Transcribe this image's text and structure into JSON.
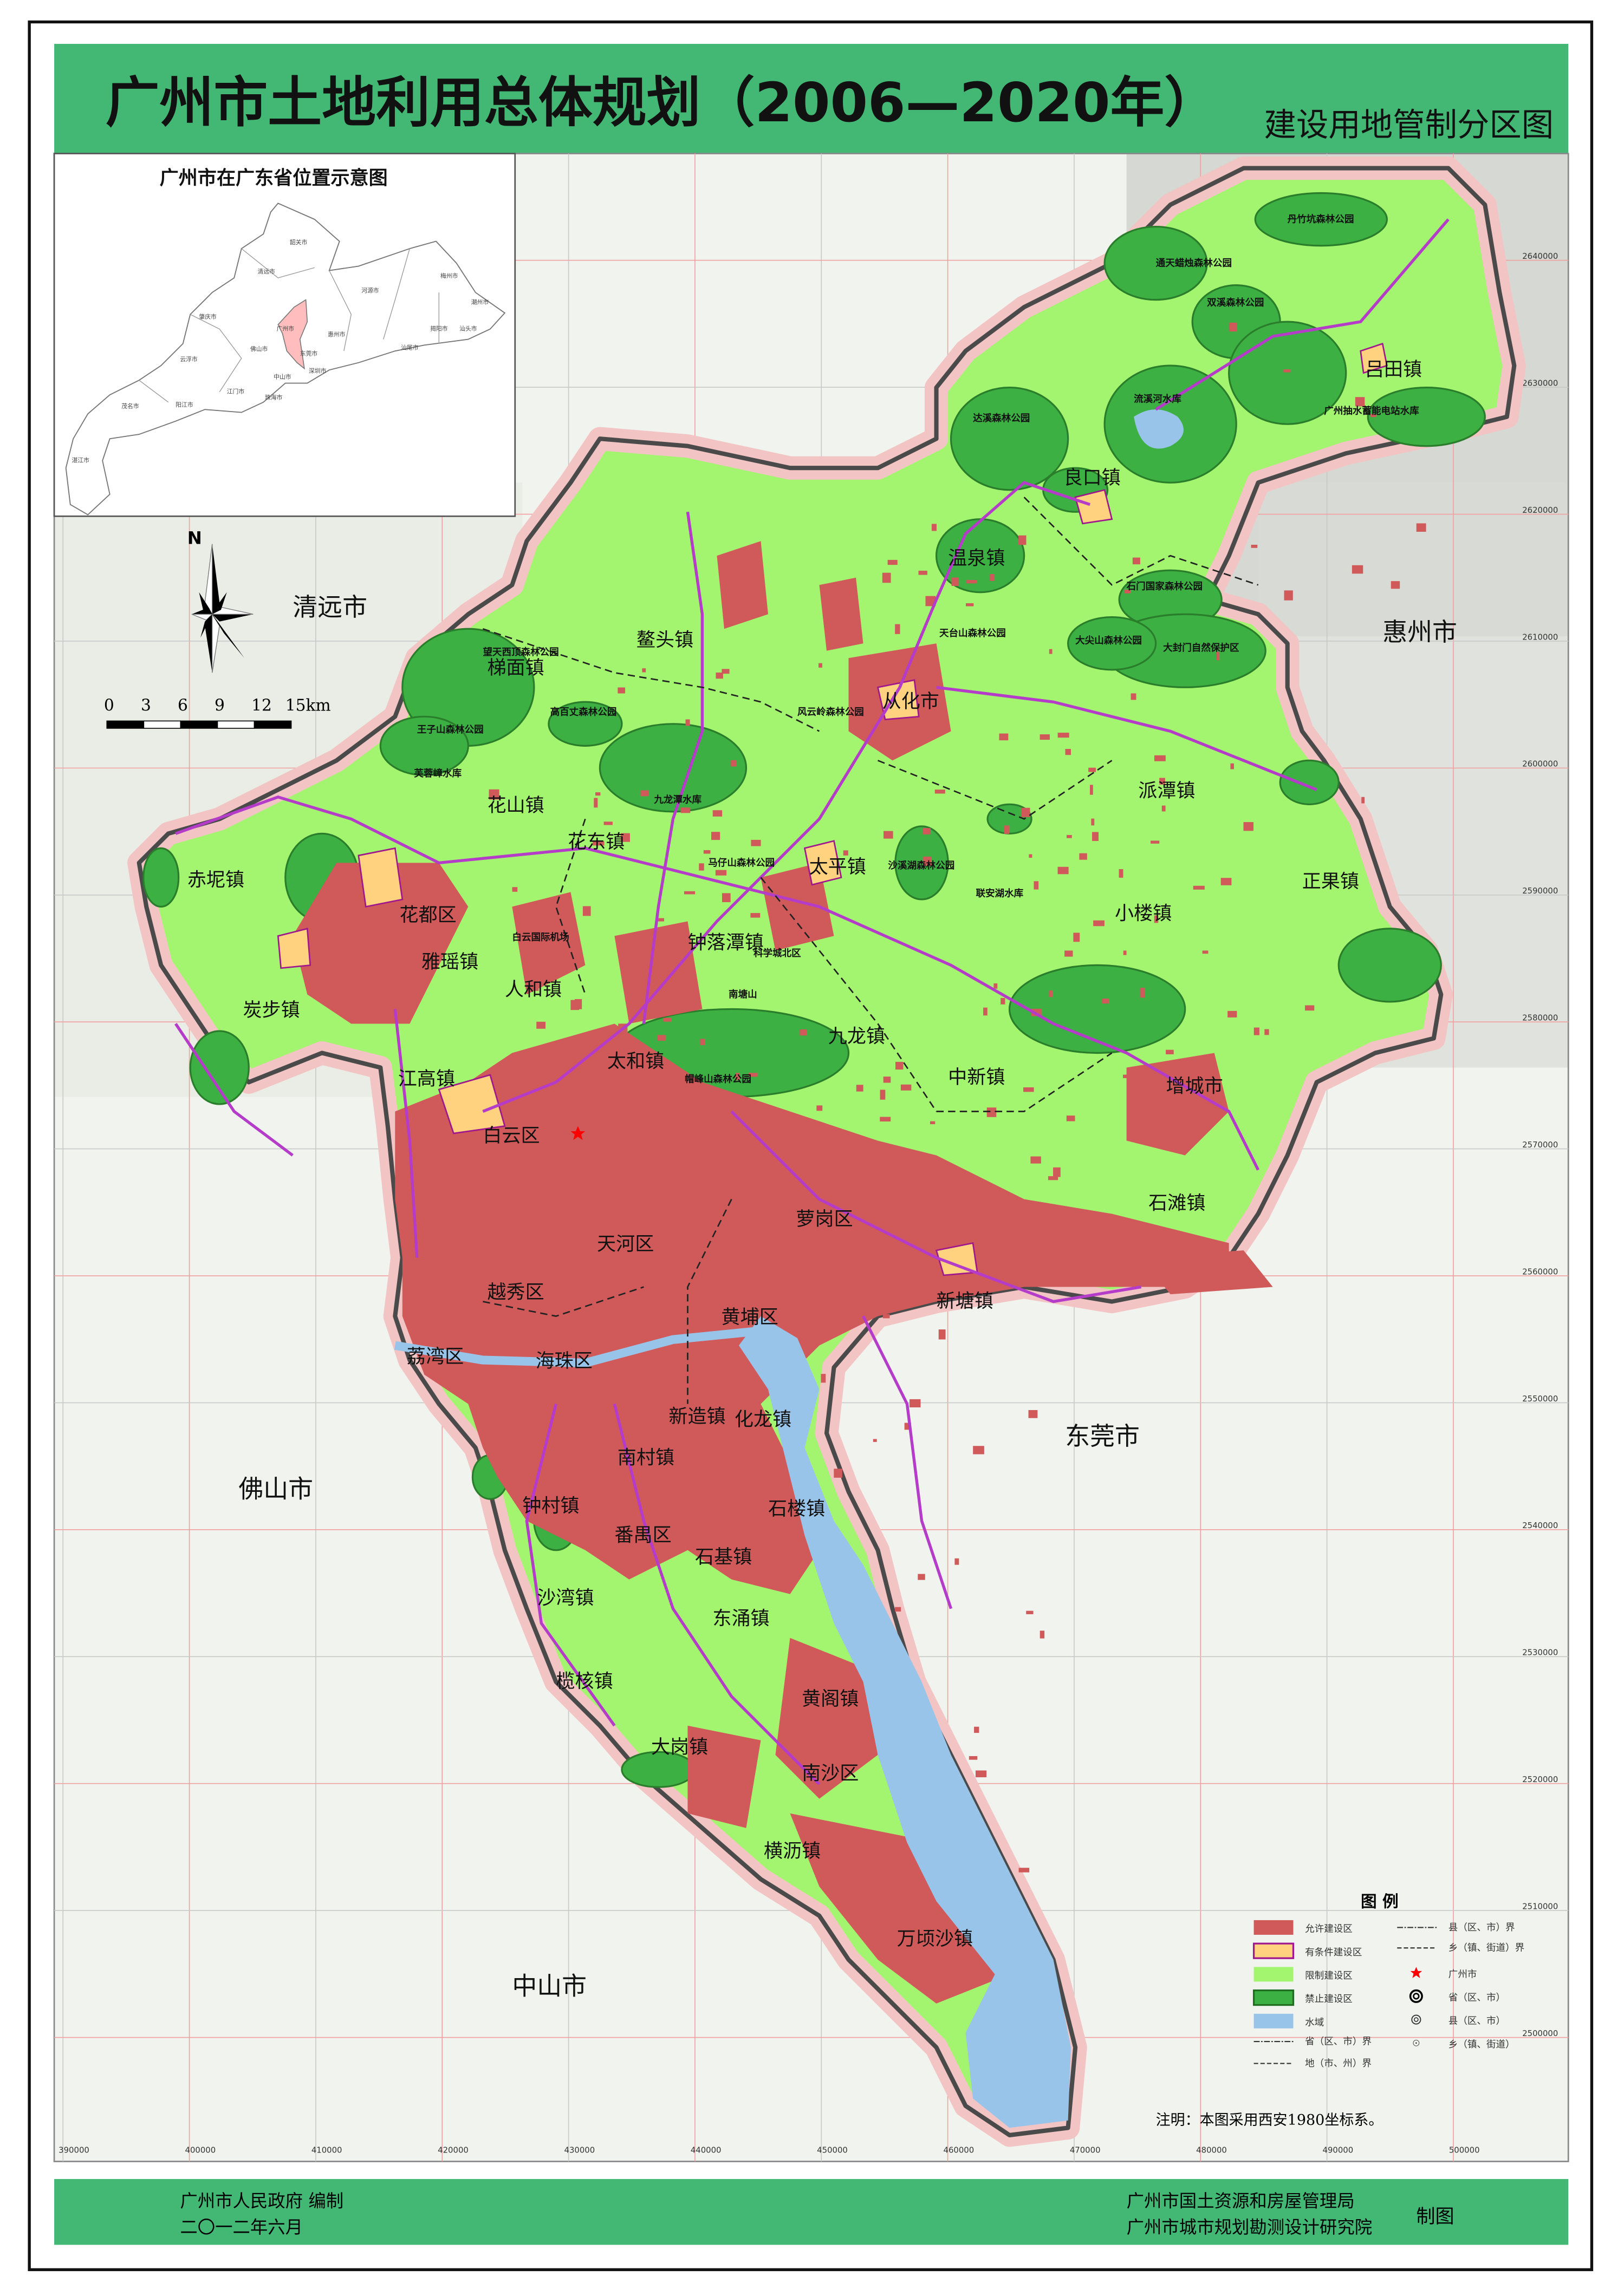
{
  "header": {
    "title": "广州市土地利用总体规划（2006—2020年）",
    "subtitle": "建设用地管制分区图",
    "bar_color": "#43b875"
  },
  "inset": {
    "title": "广州市在广东省位置示意图",
    "highlight_color": "#ffbdbd",
    "cities": [
      "韶关市",
      "清远市",
      "梅州市",
      "河源市",
      "潮州市",
      "肇庆市",
      "广州市",
      "惠州市",
      "揭阳市",
      "汕头市",
      "佛山市",
      "东莞市",
      "汕尾市",
      "云浮市",
      "深圳市",
      "中山市",
      "江门市",
      "珠海市",
      "茂名市",
      "阳江市",
      "湛江市"
    ]
  },
  "compass": {
    "north_label": "N"
  },
  "scale_bar": {
    "ticks": [
      "0",
      "3",
      "6",
      "9",
      "12",
      "15km"
    ]
  },
  "map": {
    "neighbors": [
      "清远市",
      "惠州市",
      "东莞市",
      "佛山市",
      "中山市"
    ],
    "towns": [
      "温泉镇",
      "良口镇",
      "吕田镇",
      "鳌头镇",
      "梯面镇",
      "从化市",
      "派潭镇",
      "花山镇",
      "花东镇",
      "太平镇",
      "赤坭镇",
      "花都区",
      "正果镇",
      "小楼镇",
      "钟落潭镇",
      "雅瑶镇",
      "人和镇",
      "炭步镇",
      "九龙镇",
      "太和镇",
      "中新镇",
      "江高镇",
      "增城市",
      "白云区",
      "石滩镇",
      "萝岗区",
      "天河区",
      "新塘镇",
      "越秀区",
      "黄埔区",
      "荔湾区",
      "海珠区",
      "新造镇",
      "化龙镇",
      "南村镇",
      "钟村镇",
      "石楼镇",
      "番禺区",
      "石基镇",
      "沙湾镇",
      "东涌镇",
      "榄核镇",
      "黄阁镇",
      "大岗镇",
      "南沙区",
      "横沥镇",
      "万顷沙镇"
    ],
    "features": [
      "丹竹坑森林公园",
      "通天蜡烛森林公园",
      "双溪森林公园",
      "流溪河水库",
      "达溪森林公园",
      "广州抽水蓄能电站水库",
      "石门国家森林公园",
      "大尖山森林公园",
      "大封门自然保护区",
      "天台山森林公园",
      "望天西顶森林公园",
      "高百丈森林公园",
      "王子山森林公园",
      "芙蓉嶂水库",
      "九龙潭水库",
      "风云岭森林公园",
      "马仔山森林公园",
      "沙溪湖森林公园",
      "联安湖水库",
      "白云国际机场",
      "科学城北区",
      "南塘山",
      "帽峰山森林公园"
    ],
    "x_ticks": [
      "390000",
      "400000",
      "410000",
      "420000",
      "430000",
      "440000",
      "450000",
      "460000",
      "470000",
      "480000",
      "490000",
      "500000"
    ],
    "y_ticks": [
      "2640000",
      "2630000",
      "2620000",
      "2610000",
      "2600000",
      "2590000",
      "2580000",
      "2570000",
      "2560000",
      "2550000",
      "2540000",
      "2530000",
      "2520000",
      "2510000",
      "2500000"
    ],
    "colors": {
      "allowed": "#d05a5a",
      "conditional": "#ffd27f",
      "restricted": "#a3f56f",
      "prohibited": "#3cb043",
      "water": "#99c4ea",
      "halo": "#f2c4c4"
    }
  },
  "legend": {
    "title": "图  例",
    "fills": [
      {
        "label": "允许建设区",
        "color": "#d05a5a"
      },
      {
        "label": "有条件建设区",
        "color": "#ffd27f",
        "border": "#a0168c"
      },
      {
        "label": "限制建设区",
        "color": "#a3f56f"
      },
      {
        "label": "禁止建设区",
        "color": "#3cb043",
        "border": "#1f6e1f"
      },
      {
        "label": "水域",
        "color": "#99c4ea"
      }
    ],
    "lines": [
      "省（区、市）界",
      "地（市、州）界",
      "县（区、市）界",
      "乡（镇、街道）界"
    ],
    "symbols": [
      {
        "label": "广州市",
        "icon": "red-star-icon"
      },
      {
        "label": "省（区、市）",
        "icon": "bullseye-large-icon"
      },
      {
        "label": "县（区、市）",
        "icon": "bullseye-small-icon"
      },
      {
        "label": "乡（镇、街道）",
        "icon": "dot-circle-icon"
      }
    ]
  },
  "note": "注明：本图采用西安1980坐标系。",
  "footer": {
    "left_line1": "广州市人民政府    编制",
    "left_line2": "二〇一二年六月",
    "right_line1": "广州市国土资源和房屋管理局",
    "right_line2": "广州市城市规划勘测设计研究院",
    "right_suffix": "制图"
  }
}
